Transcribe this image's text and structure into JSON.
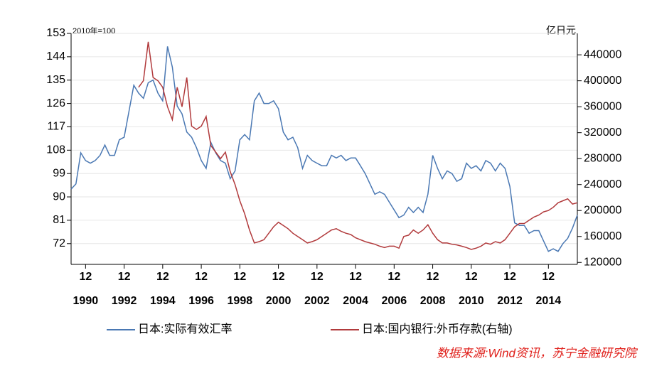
{
  "chart_data": {
    "type": "line",
    "left_axis_label": "2010年=100",
    "right_axis_label": "亿日元",
    "source": "数据来源:Wind资讯，苏宁金融研究院",
    "x": [
      "1990-03",
      "1990-06",
      "1990-09",
      "1990-12",
      "1991-03",
      "1991-06",
      "1991-09",
      "1991-12",
      "1992-03",
      "1992-06",
      "1992-09",
      "1992-12",
      "1993-03",
      "1993-06",
      "1993-09",
      "1993-12",
      "1994-03",
      "1994-06",
      "1994-09",
      "1994-12",
      "1995-03",
      "1995-06",
      "1995-09",
      "1995-12",
      "1996-03",
      "1996-06",
      "1996-09",
      "1996-12",
      "1997-03",
      "1997-06",
      "1997-09",
      "1997-12",
      "1998-03",
      "1998-06",
      "1998-09",
      "1998-12",
      "1999-03",
      "1999-06",
      "1999-09",
      "1999-12",
      "2000-03",
      "2000-06",
      "2000-09",
      "2000-12",
      "2001-03",
      "2001-06",
      "2001-09",
      "2001-12",
      "2002-03",
      "2002-06",
      "2002-09",
      "2002-12",
      "2003-03",
      "2003-06",
      "2003-09",
      "2003-12",
      "2004-03",
      "2004-06",
      "2004-09",
      "2004-12",
      "2005-03",
      "2005-06",
      "2005-09",
      "2005-12",
      "2006-03",
      "2006-06",
      "2006-09",
      "2006-12",
      "2007-03",
      "2007-06",
      "2007-09",
      "2007-12",
      "2008-03",
      "2008-06",
      "2008-09",
      "2008-12",
      "2009-03",
      "2009-06",
      "2009-09",
      "2009-12",
      "2010-03",
      "2010-06",
      "2010-09",
      "2010-12",
      "2011-03",
      "2011-06",
      "2011-09",
      "2011-12",
      "2012-03",
      "2012-06",
      "2012-09",
      "2012-12",
      "2013-03",
      "2013-06",
      "2013-09",
      "2013-12",
      "2014-03",
      "2014-06",
      "2014-09",
      "2014-12",
      "2015-03",
      "2015-06",
      "2015-09",
      "2015-12",
      "2016-03",
      "2016-06"
    ],
    "xlim": [
      "1990-03",
      "2016-06"
    ],
    "xticks": [
      {
        "value": "1990-12",
        "label": "12"
      },
      {
        "value": "1992-12",
        "label": "12"
      },
      {
        "value": "1994-12",
        "label": "12"
      },
      {
        "value": "1996-12",
        "label": "12"
      },
      {
        "value": "1998-12",
        "label": "12"
      },
      {
        "value": "2000-12",
        "label": "12"
      },
      {
        "value": "2002-12",
        "label": "12"
      },
      {
        "value": "2004-12",
        "label": "12"
      },
      {
        "value": "2006-12",
        "label": "12"
      },
      {
        "value": "2008-12",
        "label": "12"
      },
      {
        "value": "2010-12",
        "label": "12"
      },
      {
        "value": "2012-12",
        "label": "12"
      },
      {
        "value": "2014-12",
        "label": "12"
      }
    ],
    "xtick_years": [
      "1990",
      "1992",
      "1994",
      "1996",
      "1998",
      "2000",
      "2002",
      "2004",
      "2006",
      "2008",
      "2010",
      "2012",
      "2014"
    ],
    "ylim": [
      64,
      153
    ],
    "yticks": [
      72,
      81,
      90,
      99,
      108,
      117,
      126,
      135,
      144,
      153
    ],
    "y2lim": [
      117000,
      473000
    ],
    "y2ticks": [
      120000,
      160000,
      200000,
      240000,
      280000,
      320000,
      360000,
      400000,
      440000
    ],
    "grid": true,
    "series": [
      {
        "name": "日本:实际有效汇率",
        "color": "#4a78b3",
        "values": [
          93,
          95,
          107,
          104,
          103,
          104,
          106,
          110,
          106,
          106,
          112,
          113,
          123,
          133,
          130,
          128,
          134,
          135,
          130,
          127,
          148,
          140,
          125,
          122,
          115,
          113,
          109,
          104,
          101,
          111,
          107,
          104,
          103,
          97,
          100,
          112,
          114,
          112,
          127,
          130,
          126,
          126,
          127,
          124,
          115,
          112,
          113,
          109,
          101,
          106,
          104,
          103,
          102,
          102,
          106,
          105,
          106,
          104,
          105,
          105,
          102,
          99,
          95,
          91,
          92,
          91,
          88,
          85,
          82,
          83,
          86,
          84,
          86,
          84,
          91,
          106,
          101,
          97,
          100,
          99,
          96,
          97,
          103,
          101,
          102,
          100,
          104,
          103,
          100,
          103,
          101,
          94,
          80,
          79,
          79,
          76,
          77,
          77,
          73,
          69,
          70,
          69,
          72,
          74,
          78,
          83
        ]
      },
      {
        "name": "日本:国内银行:外币存款(右轴)",
        "color": "#b13a3c",
        "axis": "y2",
        "values": [
          null,
          null,
          null,
          null,
          null,
          null,
          null,
          null,
          null,
          null,
          null,
          null,
          null,
          null,
          390000,
          400000,
          460000,
          405000,
          400000,
          390000,
          360000,
          340000,
          390000,
          360000,
          405000,
          330000,
          325000,
          330000,
          345000,
          300000,
          290000,
          280000,
          290000,
          260000,
          240000,
          215000,
          195000,
          170000,
          150000,
          152000,
          155000,
          165000,
          175000,
          182000,
          177000,
          172000,
          165000,
          160000,
          155000,
          150000,
          152000,
          155000,
          160000,
          165000,
          170000,
          172000,
          168000,
          165000,
          163000,
          158000,
          155000,
          152000,
          150000,
          148000,
          145000,
          143000,
          145000,
          145000,
          142000,
          160000,
          162000,
          170000,
          165000,
          170000,
          178000,
          165000,
          155000,
          150000,
          150000,
          148000,
          147000,
          145000,
          143000,
          140000,
          142000,
          145000,
          150000,
          148000,
          152000,
          150000,
          155000,
          165000,
          175000,
          180000,
          180000,
          185000,
          190000,
          193000,
          198000,
          200000,
          205000,
          212000,
          215000,
          218000,
          210000,
          212000
        ]
      }
    ]
  }
}
